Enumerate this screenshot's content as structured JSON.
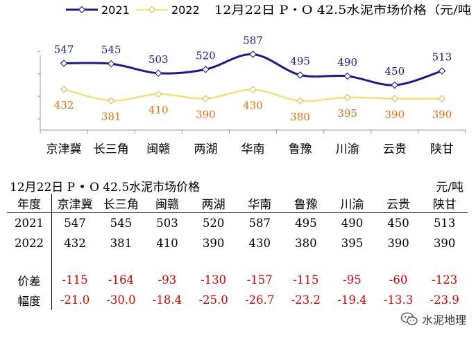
{
  "chart_data": {
    "type": "line",
    "title": "12月22日 P・O 42.5水泥市场价格（元/吨",
    "categories": [
      "京津冀",
      "长三角",
      "闽赣",
      "两湖",
      "华南",
      "鲁豫",
      "川渝",
      "云贵",
      "陕甘"
    ],
    "series": [
      {
        "name": "2021",
        "values": [
          547,
          545,
          503,
          520,
          587,
          495,
          490,
          450,
          513
        ],
        "color": "#1a1a8c",
        "label_color": "#1a1a8c"
      },
      {
        "name": "2022",
        "values": [
          432,
          381,
          410,
          390,
          430,
          380,
          395,
          390,
          390
        ],
        "color": "#f5e17a",
        "label_color": "#e8700a"
      }
    ],
    "ylim": [
      250,
      650
    ],
    "legend": "top-left",
    "xlabel": "",
    "ylabel": ""
  },
  "table": {
    "title": "12月22日 P • O 42.5水泥市场价格",
    "unit": "元/吨",
    "header_label": "年度",
    "columns": [
      "京津冀",
      "长三角",
      "闽赣",
      "两湖",
      "华南",
      "鲁豫",
      "川渝",
      "云贵",
      "陕甘"
    ],
    "rows": [
      {
        "label": "2021",
        "values": [
          "547",
          "545",
          "503",
          "520",
          "587",
          "495",
          "490",
          "450",
          "513"
        ],
        "negative": false
      },
      {
        "label": "2022",
        "values": [
          "432",
          "381",
          "410",
          "390",
          "430",
          "380",
          "395",
          "390",
          "390"
        ],
        "negative": false
      },
      {
        "label": "价差",
        "values": [
          "-115",
          "-164",
          "-93",
          "-130",
          "-157",
          "-115",
          "-95",
          "-60",
          "-123"
        ],
        "negative": true
      },
      {
        "label": "幅度",
        "values": [
          "-21.0",
          "-30.0",
          "-18.4",
          "-25.0",
          "-26.7",
          "-23.2",
          "-19.4",
          "-13.3",
          "-23.9"
        ],
        "negative": true
      }
    ]
  },
  "watermark": {
    "text": "水泥地理",
    "icon": "wechat-icon"
  },
  "colors": {
    "negative": "#e00000"
  }
}
